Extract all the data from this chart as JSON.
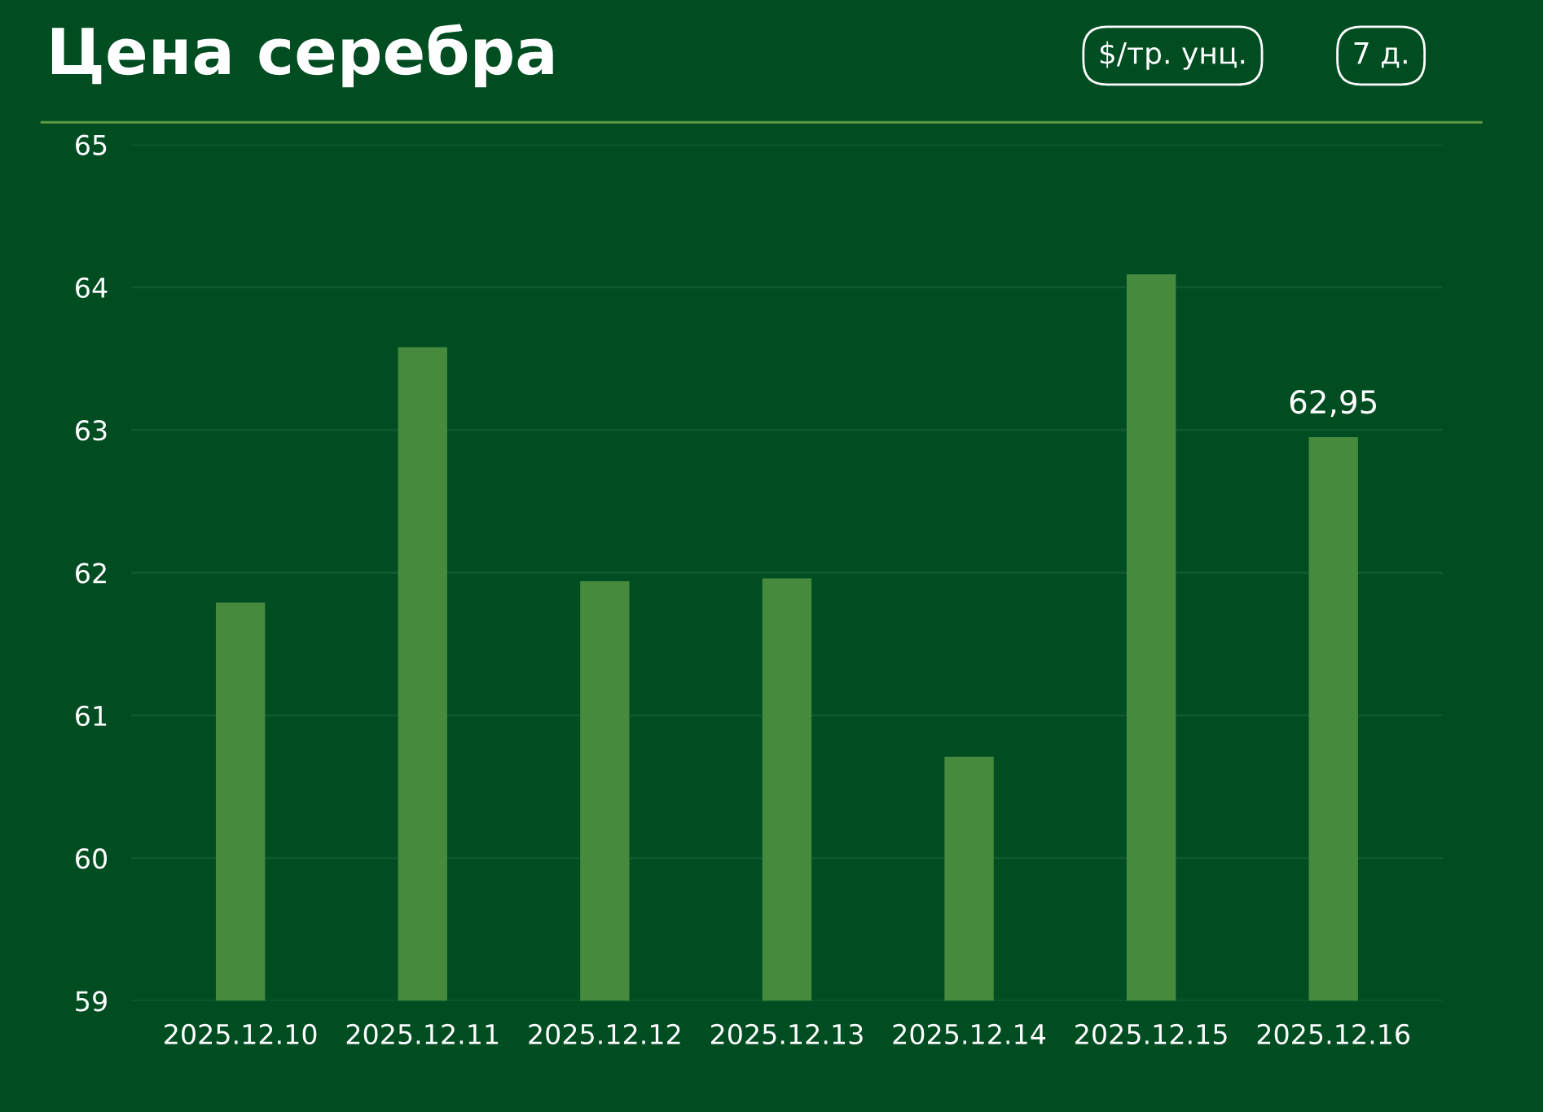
{
  "chart_data": {
    "type": "bar",
    "title": "Цена серебра",
    "annotations": [
      "$/тр. унц.",
      "7 д."
    ],
    "categories": [
      "2025.12.10",
      "2025.12.11",
      "2025.12.12",
      "2025.12.13",
      "2025.12.14",
      "2025.12.15",
      "2025.12.16"
    ],
    "values": [
      61.79,
      63.58,
      61.94,
      61.96,
      60.71,
      64.09,
      62.95
    ],
    "value_labels": [
      null,
      null,
      null,
      null,
      null,
      null,
      "62,95"
    ],
    "color": "#468a3e",
    "ylim": [
      59,
      65
    ],
    "yticks": [
      59,
      60,
      61,
      62,
      63,
      64,
      65
    ],
    "grid": "y"
  }
}
